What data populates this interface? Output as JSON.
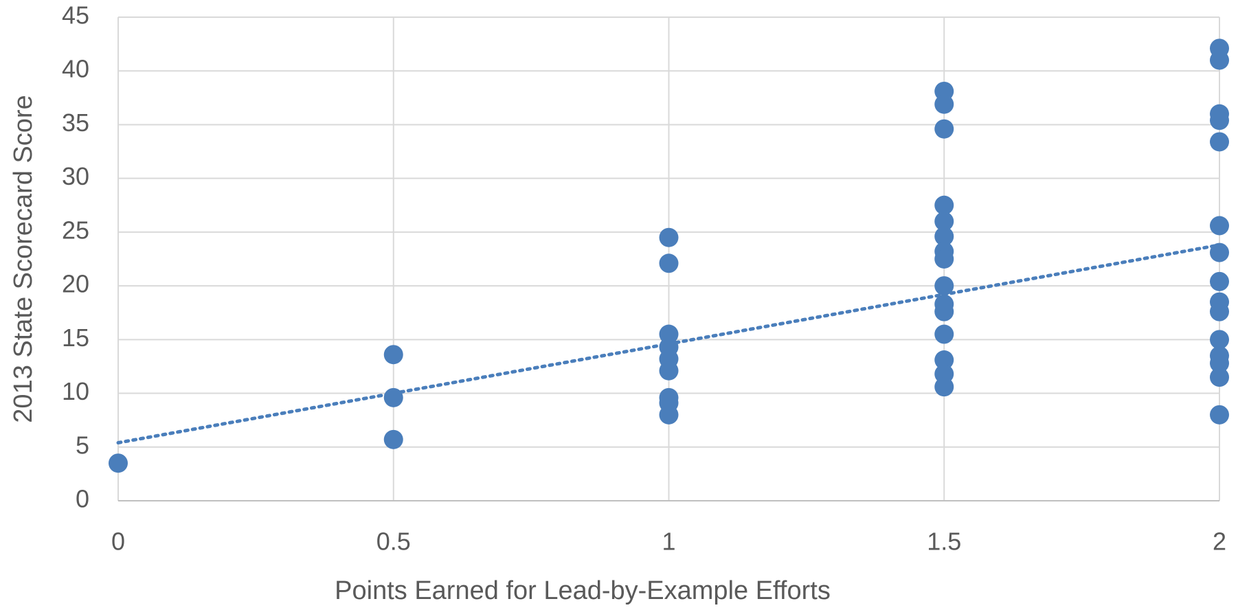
{
  "chart_data": {
    "type": "scatter",
    "x_label": "Points Earned for Lead-by-Example Efforts",
    "y_label": "2013 State Scorecard Score",
    "color": "#4a7ebb",
    "grid": true,
    "x": [
      0,
      0.5,
      0.5,
      0.5,
      1,
      1,
      1,
      1,
      1,
      1,
      1,
      1,
      1,
      1.5,
      1.5,
      1.5,
      1.5,
      1.5,
      1.5,
      1.5,
      1.5,
      1.5,
      1.5,
      1.5,
      1.5,
      1.5,
      1.5,
      1.5,
      2,
      2,
      2,
      2,
      2,
      2,
      2,
      2,
      2,
      2,
      2,
      2,
      2,
      2,
      2
    ],
    "y": [
      3.5,
      13.6,
      9.6,
      5.7,
      24.5,
      22.1,
      15.5,
      14.3,
      13.2,
      12.1,
      9.6,
      9.1,
      8.0,
      38.1,
      36.9,
      34.6,
      27.5,
      26.0,
      24.6,
      23.2,
      22.5,
      20.0,
      18.3,
      17.6,
      15.5,
      13.1,
      11.8,
      10.6,
      42.1,
      41.0,
      36.0,
      35.4,
      33.4,
      25.6,
      23.1,
      20.4,
      18.5,
      17.6,
      15.0,
      13.5,
      12.8,
      11.5,
      8.0
    ],
    "trendline": {
      "x": [
        0,
        2
      ],
      "y": [
        5.4,
        23.8
      ]
    },
    "xlim": [
      0,
      2
    ],
    "xticks": [
      0,
      0.5,
      1,
      1.5,
      2
    ],
    "ylim": [
      0,
      45
    ],
    "yticks": [
      0,
      5,
      10,
      15,
      20,
      25,
      30,
      35,
      40,
      45
    ]
  }
}
